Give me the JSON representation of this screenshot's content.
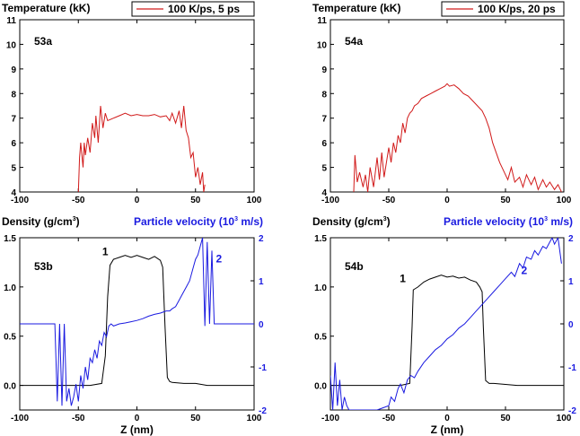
{
  "chart_data": [
    {
      "id": "53a",
      "type": "line",
      "panel_label": "53a",
      "ylabel": "Temperature (kK)",
      "xlim": [
        -100,
        100
      ],
      "ylim": [
        4,
        11
      ],
      "xticks": [
        -100,
        -50,
        0,
        50,
        100
      ],
      "yticks": [
        4,
        5,
        6,
        7,
        8,
        9,
        10,
        11
      ],
      "legend": "100 K/ps, 5 ps",
      "legend_position": "top-right",
      "series": [
        {
          "name": "temperature",
          "color": "#d11a1a",
          "x": [
            -50,
            -49,
            -48,
            -46,
            -45,
            -44,
            -42,
            -40,
            -38,
            -36,
            -35,
            -33,
            -31,
            -29,
            -27,
            -25,
            -20,
            -15,
            -10,
            -5,
            0,
            5,
            10,
            15,
            20,
            25,
            28,
            30,
            33,
            36,
            38,
            40,
            42,
            44,
            46,
            48,
            50,
            52,
            54,
            56,
            57,
            58
          ],
          "y": [
            4.0,
            5.4,
            6.0,
            5.0,
            6.0,
            5.5,
            6.2,
            5.6,
            6.8,
            6.2,
            7.1,
            6.0,
            7.5,
            6.6,
            7.2,
            6.9,
            7.0,
            7.1,
            7.2,
            7.1,
            7.15,
            7.1,
            7.1,
            7.15,
            7.05,
            7.1,
            6.9,
            7.2,
            6.8,
            7.3,
            6.6,
            7.5,
            6.5,
            6.2,
            5.4,
            5.6,
            4.6,
            5.0,
            4.3,
            4.8,
            4.0,
            4.3
          ]
        }
      ]
    },
    {
      "id": "54a",
      "type": "line",
      "panel_label": "54a",
      "ylabel": "Temperature (kK)",
      "xlim": [
        -100,
        100
      ],
      "ylim": [
        4,
        11
      ],
      "xticks": [
        -100,
        -50,
        0,
        50,
        100
      ],
      "yticks": [
        4,
        5,
        6,
        7,
        8,
        9,
        10,
        11
      ],
      "legend": "100 K/ps, 20 ps",
      "legend_position": "top-right",
      "series": [
        {
          "name": "temperature",
          "color": "#d11a1a",
          "x": [
            -80,
            -79,
            -77,
            -75,
            -72,
            -70,
            -68,
            -66,
            -63,
            -60,
            -58,
            -56,
            -54,
            -52,
            -50,
            -48,
            -46,
            -44,
            -42,
            -40,
            -38,
            -36,
            -34,
            -32,
            -30,
            -28,
            -25,
            -22,
            -18,
            -14,
            -10,
            -6,
            -2,
            0,
            2,
            6,
            10,
            14,
            18,
            22,
            26,
            30,
            33,
            36,
            39,
            42,
            45,
            48,
            52,
            55,
            58,
            62,
            65,
            68,
            72,
            75,
            78,
            82,
            85,
            88,
            92,
            95,
            98
          ],
          "y": [
            4.0,
            5.5,
            4.4,
            4.8,
            4.2,
            4.7,
            4.0,
            5.0,
            4.2,
            5.4,
            4.5,
            5.6,
            4.6,
            5.2,
            5.8,
            5.2,
            6.0,
            5.6,
            6.3,
            6.0,
            6.8,
            6.4,
            7.0,
            7.2,
            7.3,
            7.5,
            7.6,
            7.8,
            7.9,
            8.0,
            8.1,
            8.2,
            8.3,
            8.4,
            8.3,
            8.35,
            8.2,
            8.0,
            7.9,
            7.7,
            7.5,
            7.3,
            7.0,
            6.6,
            6.0,
            5.6,
            5.2,
            4.9,
            4.5,
            5.0,
            4.4,
            4.6,
            4.2,
            4.7,
            4.3,
            4.6,
            4.1,
            4.5,
            4.2,
            4.4,
            4.1,
            4.3,
            4.0
          ]
        }
      ]
    },
    {
      "id": "53b",
      "type": "line",
      "panel_label": "53b",
      "xlabel": "Z (nm)",
      "ylabel_left": "Density (g/cm",
      "ylabel_left_sup": "3",
      "ylabel_right": "Particle velocity (10",
      "ylabel_right_sup": "3",
      "ylabel_right_unit": " m/s)",
      "xlim": [
        -100,
        100
      ],
      "ylim_left": [
        -0.25,
        1.5
      ],
      "ylim_right": [
        -2,
        2
      ],
      "xticks": [
        -100,
        -50,
        0,
        50,
        100
      ],
      "yticks_left": [
        0.0,
        0.5,
        1.0,
        1.5
      ],
      "yticks_right": [
        -2,
        -1,
        0,
        1,
        2
      ],
      "curve_labels": [
        {
          "text": "1",
          "x": -27,
          "y_left": 1.32
        },
        {
          "text": "2",
          "x": 70,
          "y_left": 1.25
        }
      ],
      "series": [
        {
          "name": "density",
          "axis": "left",
          "color": "#000000",
          "x": [
            -100,
            -40,
            -30,
            -27,
            -25,
            -23,
            -20,
            -15,
            -10,
            -5,
            0,
            5,
            10,
            15,
            20,
            22,
            24,
            26,
            28,
            30,
            40,
            50,
            60,
            70,
            80,
            100
          ],
          "y": [
            0.0,
            0.0,
            0.02,
            0.3,
            0.9,
            1.22,
            1.28,
            1.3,
            1.32,
            1.3,
            1.32,
            1.3,
            1.28,
            1.31,
            1.27,
            1.2,
            0.6,
            0.08,
            0.04,
            0.03,
            0.02,
            0.02,
            0.0,
            0.0,
            0.0,
            0.0
          ]
        },
        {
          "name": "particle-velocity",
          "axis": "right",
          "color": "#1a1ae0",
          "x": [
            -100,
            -70,
            -68,
            -66,
            -64,
            -62,
            -60,
            -58,
            -56,
            -54,
            -52,
            -50,
            -48,
            -46,
            -44,
            -42,
            -40,
            -38,
            -36,
            -34,
            -32,
            -30,
            -28,
            -26,
            -24,
            -22,
            -20,
            -15,
            -10,
            -5,
            0,
            5,
            10,
            15,
            20,
            25,
            28,
            30,
            33,
            36,
            39,
            42,
            45,
            48,
            50,
            52,
            54,
            56,
            58,
            60,
            62,
            64,
            66,
            100
          ],
          "y": [
            0.0,
            0.0,
            -1.8,
            0.0,
            -1.9,
            0.0,
            -1.8,
            -1.5,
            -1.9,
            -1.7,
            -1.4,
            -1.8,
            -1.2,
            -1.5,
            -1.0,
            -1.3,
            -0.8,
            -0.9,
            -0.6,
            -0.8,
            -0.4,
            -0.5,
            -0.2,
            -0.3,
            -0.05,
            0.0,
            -0.05,
            0.0,
            0.02,
            0.05,
            0.08,
            0.12,
            0.18,
            0.22,
            0.25,
            0.3,
            0.3,
            0.35,
            0.4,
            0.55,
            0.7,
            0.85,
            1.0,
            1.3,
            1.5,
            1.6,
            1.8,
            2.0,
            -0.05,
            1.9,
            0.0,
            1.7,
            0.0,
            0.0
          ]
        }
      ]
    },
    {
      "id": "54b",
      "type": "line",
      "panel_label": "54b",
      "xlabel": "Z (nm)",
      "ylabel_left": "Density (g/cm",
      "ylabel_left_sup": "3",
      "ylabel_right": "Particle velocity (10",
      "ylabel_right_sup": "3",
      "ylabel_right_unit": " m/s)",
      "xlim": [
        -100,
        100
      ],
      "ylim_left": [
        -0.25,
        1.5
      ],
      "ylim_right": [
        -2,
        2
      ],
      "xticks": [
        -100,
        -50,
        0,
        50,
        100
      ],
      "yticks_left": [
        0.0,
        0.5,
        1.0,
        1.5
      ],
      "yticks_right": [
        -2,
        -1,
        0,
        1,
        2
      ],
      "curve_labels": [
        {
          "text": "1",
          "x": -38,
          "y_left": 1.05
        },
        {
          "text": "2",
          "x": 66,
          "y_left": 1.13
        }
      ],
      "series": [
        {
          "name": "density",
          "axis": "left",
          "color": "#000000",
          "x": [
            -100,
            -50,
            -40,
            -32,
            -30,
            -29,
            -25,
            -20,
            -15,
            -10,
            -5,
            0,
            5,
            10,
            15,
            20,
            25,
            28,
            30,
            31,
            33,
            36,
            40,
            50,
            60,
            80,
            100
          ],
          "y": [
            0.0,
            0.0,
            0.0,
            0.02,
            0.6,
            0.97,
            1.0,
            1.05,
            1.08,
            1.1,
            1.12,
            1.1,
            1.11,
            1.09,
            1.1,
            1.07,
            1.05,
            1.0,
            0.95,
            0.6,
            0.05,
            0.02,
            0.02,
            0.01,
            0.0,
            0.0,
            0.0
          ]
        },
        {
          "name": "particle-velocity",
          "axis": "right",
          "color": "#1a1ae0",
          "x": [
            -100,
            -98,
            -96,
            -94,
            -92,
            -90,
            -88,
            -86,
            -84,
            -82,
            -80,
            -75,
            -70,
            -65,
            -60,
            -55,
            -50,
            -48,
            -45,
            -42,
            -40,
            -37,
            -34,
            -31,
            -28,
            -25,
            -20,
            -15,
            -10,
            -5,
            0,
            5,
            10,
            15,
            20,
            25,
            30,
            35,
            40,
            45,
            50,
            55,
            58,
            62,
            65,
            68,
            72,
            75,
            78,
            82,
            85,
            88,
            90,
            92,
            95,
            98
          ],
          "y": [
            -1.2,
            -2.0,
            -0.9,
            -1.9,
            -1.3,
            -2.0,
            -1.7,
            -1.9,
            -2.0,
            -2.0,
            -2.0,
            -2.0,
            -2.0,
            -2.0,
            -2.0,
            -1.95,
            -1.9,
            -1.7,
            -1.8,
            -1.5,
            -1.4,
            -1.6,
            -1.3,
            -1.2,
            -1.25,
            -1.1,
            -0.9,
            -0.75,
            -0.6,
            -0.5,
            -0.35,
            -0.25,
            -0.1,
            0.0,
            0.15,
            0.3,
            0.45,
            0.6,
            0.75,
            0.9,
            1.05,
            1.2,
            1.1,
            1.4,
            1.3,
            1.55,
            1.5,
            1.7,
            1.6,
            1.8,
            1.75,
            1.9,
            2.0,
            1.85,
            2.0,
            1.4
          ]
        }
      ]
    }
  ]
}
